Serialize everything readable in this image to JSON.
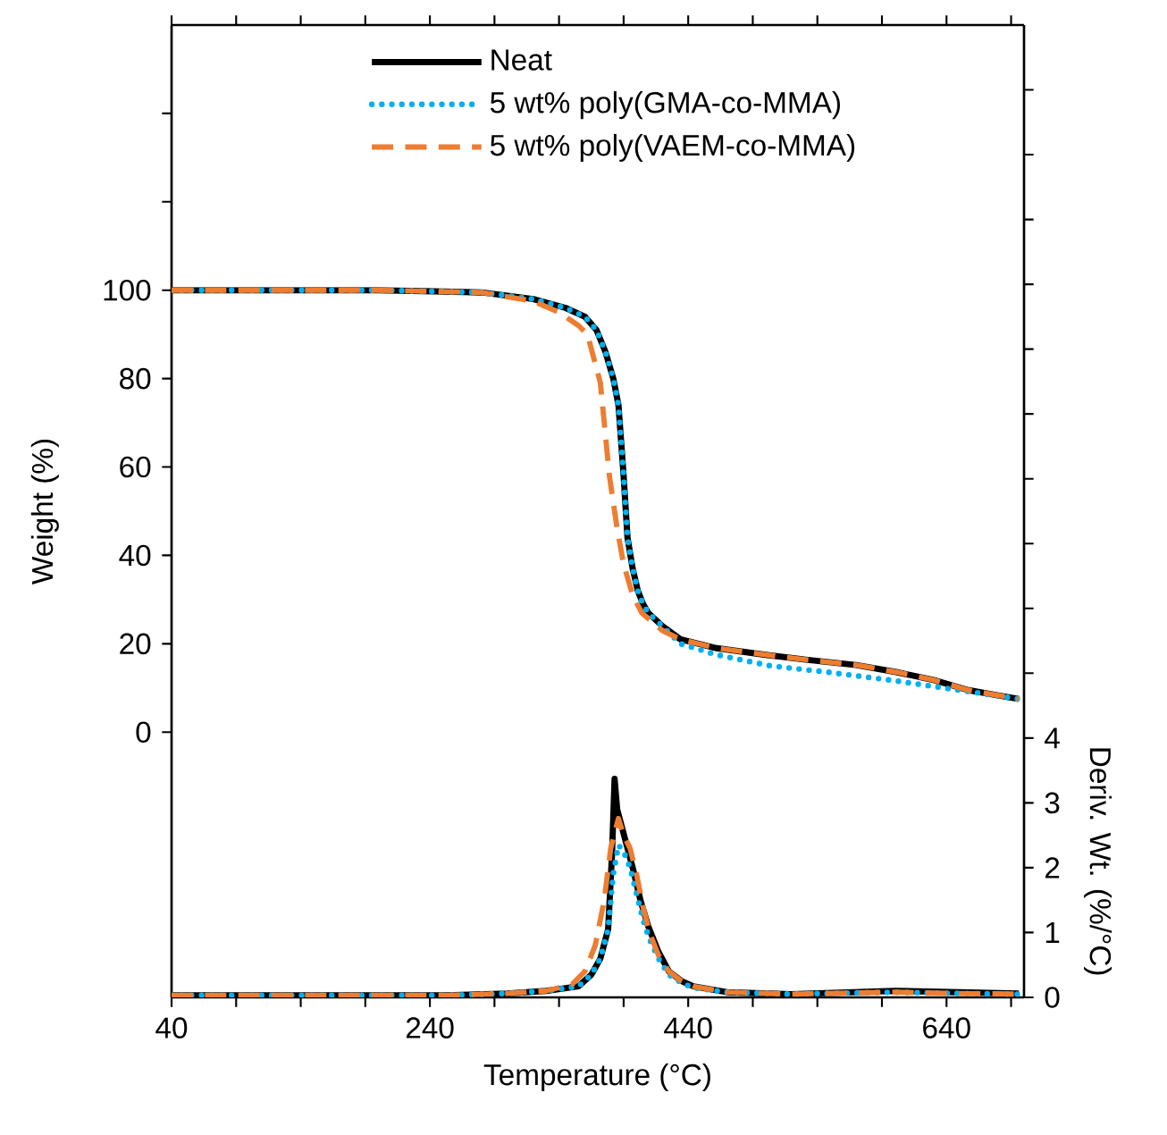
{
  "chart_data": {
    "type": "line",
    "xlabel": "Temperature (°C)",
    "ylabel": "Weight (%)",
    "y2label": "Deriv. Wt. (%/°C)",
    "xlim": [
      40,
      700
    ],
    "xticks": [
      40,
      {
        "value": 90,
        "label": null
      },
      {
        "value": 140,
        "label": null
      },
      {
        "value": 190,
        "label": null
      },
      240,
      {
        "value": 290,
        "label": null
      },
      {
        "value": 340,
        "label": null
      },
      {
        "value": 390,
        "label": null
      },
      440,
      {
        "value": 490,
        "label": null
      },
      {
        "value": 540,
        "label": null
      },
      {
        "value": 590,
        "label": null
      },
      640,
      {
        "value": 690,
        "label": null
      }
    ],
    "ylim": [
      -60,
      160
    ],
    "yticks": [
      0,
      20,
      40,
      60,
      80,
      100,
      {
        "value": 120,
        "label": null
      },
      {
        "value": 140,
        "label": null
      }
    ],
    "y2lim": [
      0,
      15
    ],
    "y2ticks": [
      0,
      1,
      2,
      3,
      4,
      {
        "value": 5,
        "label": null
      },
      {
        "value": 6,
        "label": null
      },
      {
        "value": 7,
        "label": null
      },
      {
        "value": 8,
        "label": null
      },
      {
        "value": 9,
        "label": null
      },
      {
        "value": 10,
        "label": null
      },
      {
        "value": 11,
        "label": null
      },
      {
        "value": 12,
        "label": null
      },
      {
        "value": 13,
        "label": null
      },
      {
        "value": 14,
        "label": null
      }
    ],
    "legend": "top",
    "grid": false,
    "series": [
      {
        "name": "Neat",
        "color": "#000000",
        "line_style": "solid",
        "x": [
          40,
          100,
          200,
          280,
          320,
          345,
          360,
          369,
          376,
          382,
          386,
          390,
          393,
          397,
          401,
          405,
          409,
          420,
          434,
          462,
          500,
          531,
          570,
          601,
          630,
          657,
          680,
          696
        ],
        "values": [
          100,
          100,
          100,
          99.5,
          98,
          96,
          94,
          91,
          86,
          80,
          74,
          58,
          44,
          37,
          32,
          29,
          27,
          24,
          21,
          19,
          17.5,
          16.4,
          15.2,
          13.6,
          11.8,
          9.5,
          8.3,
          7.5
        ]
      },
      {
        "name": "5 wt% poly(GMA-co-MMA)",
        "color": "#00b0f0",
        "line_style": "dotted",
        "x": [
          40,
          100,
          200,
          280,
          320,
          345,
          360,
          369,
          376,
          382,
          386,
          390,
          393,
          397,
          401,
          405,
          409,
          420,
          434,
          462,
          504,
          550,
          601,
          650,
          696
        ],
        "values": [
          100,
          100,
          100,
          99.5,
          98,
          96,
          94,
          91,
          86,
          80,
          74,
          58,
          44,
          37,
          32,
          29,
          27,
          24,
          20,
          17.5,
          15,
          13.5,
          11.6,
          9.5,
          7.5
        ]
      },
      {
        "name": "5 wt% poly(VAEM-co-MMA)",
        "color": "#ed7d31",
        "line_style": "dashed",
        "x": [
          40,
          100,
          200,
          280,
          320,
          340,
          355,
          362,
          372,
          379,
          385,
          390,
          397,
          404,
          420,
          434,
          462,
          500,
          531,
          570,
          601,
          630,
          657,
          696
        ],
        "values": [
          100,
          100,
          100,
          99.5,
          97.5,
          95,
          92,
          90,
          79,
          58,
          46,
          38,
          31,
          27,
          23,
          21,
          19,
          17.5,
          16.4,
          15.2,
          13.6,
          11.8,
          9.5,
          7.5
        ]
      },
      {
        "color": "#000000",
        "line_style": "solid",
        "axis": "y2",
        "x": [
          40,
          150,
          250,
          300,
          330,
          355,
          365,
          372,
          378,
          381,
          383,
          385,
          389,
          393,
          397,
          403,
          409,
          417,
          425,
          435,
          444,
          470,
          520,
          600,
          650,
          696
        ],
        "values": [
          0.03,
          0.03,
          0.03,
          0.06,
          0.1,
          0.17,
          0.35,
          0.6,
          1.05,
          2.2,
          3.37,
          2.9,
          2.6,
          2.3,
          2.0,
          1.5,
          1.1,
          0.7,
          0.4,
          0.25,
          0.17,
          0.08,
          0.05,
          0.1,
          0.08,
          0.06
        ]
      },
      {
        "color": "#00b0f0",
        "line_style": "dotted",
        "axis": "y2",
        "x": [
          40,
          150,
          250,
          300,
          330,
          355,
          365,
          372,
          378,
          382,
          386,
          390,
          395,
          400,
          405,
          410,
          417,
          425,
          435,
          444,
          470,
          520,
          600,
          650,
          696
        ],
        "values": [
          0.03,
          0.03,
          0.03,
          0.06,
          0.1,
          0.17,
          0.35,
          0.6,
          1.05,
          1.9,
          2.35,
          2.25,
          2.0,
          1.6,
          1.2,
          0.9,
          0.6,
          0.35,
          0.22,
          0.15,
          0.08,
          0.05,
          0.08,
          0.06,
          0.05
        ]
      },
      {
        "color": "#ed7d31",
        "line_style": "dashed",
        "axis": "y2",
        "x": [
          40,
          150,
          250,
          300,
          330,
          350,
          360,
          368,
          375,
          380,
          386,
          390,
          395,
          400,
          405,
          410,
          417,
          425,
          435,
          444,
          470,
          520,
          600,
          650,
          696
        ],
        "values": [
          0.03,
          0.03,
          0.03,
          0.06,
          0.1,
          0.2,
          0.4,
          0.8,
          1.5,
          2.3,
          2.76,
          2.5,
          2.3,
          1.9,
          1.4,
          1.0,
          0.65,
          0.4,
          0.25,
          0.17,
          0.08,
          0.05,
          0.08,
          0.06,
          0.05
        ]
      }
    ]
  }
}
